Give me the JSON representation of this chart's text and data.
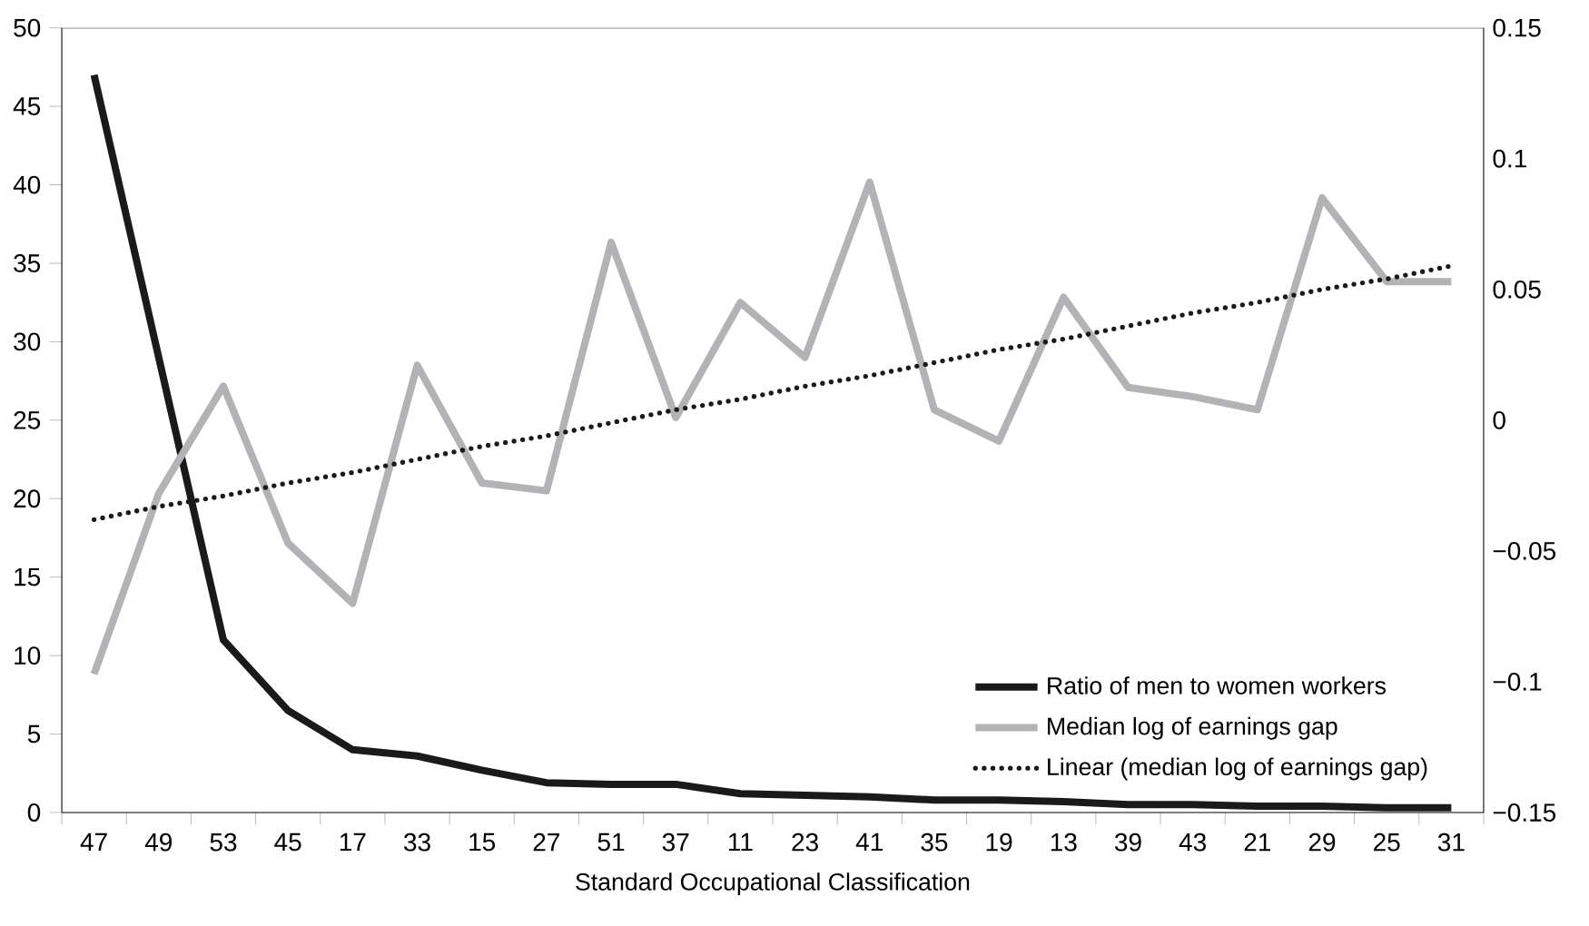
{
  "chart_data": {
    "type": "line",
    "xlabel": "Standard Occupational Classification",
    "categories": [
      "47",
      "49",
      "53",
      "45",
      "17",
      "33",
      "15",
      "27",
      "51",
      "37",
      "11",
      "23",
      "41",
      "35",
      "19",
      "13",
      "39",
      "43",
      "21",
      "29",
      "25",
      "31"
    ],
    "series": [
      {
        "name": "Ratio of men to women workers",
        "color": "#1a1a1a",
        "values": [
          47,
          29,
          11,
          6.5,
          4,
          3.6,
          2.7,
          1.9,
          1.8,
          1.8,
          1.2,
          1.1,
          1.0,
          0.8,
          0.8,
          0.7,
          0.5,
          0.5,
          0.4,
          0.4,
          0.3,
          0.3
        ]
      },
      {
        "name": "Median log of earnings gap",
        "color": "#b3b3b5",
        "axis": "y2",
        "values": [
          -0.097,
          -0.028,
          0.013,
          -0.047,
          -0.07,
          0.021,
          -0.024,
          -0.027,
          0.068,
          0.001,
          0.045,
          0.024,
          0.091,
          0.004,
          -0.008,
          0.047,
          0.0125,
          0.009,
          0.004,
          0.085,
          0.053,
          0.053
        ]
      },
      {
        "name": "Linear (median log of earnings gap)",
        "color": "#1a1a1a",
        "axis": "y2",
        "line_style": "dotted",
        "values": [
          -0.038,
          -0.033,
          -0.029,
          -0.024,
          -0.02,
          -0.015,
          -0.01,
          -0.006,
          -0.001,
          0.004,
          0.008,
          0.013,
          0.017,
          0.022,
          0.027,
          0.031,
          0.036,
          0.041,
          0.045,
          0.05,
          0.054,
          0.059
        ]
      }
    ],
    "ylim": [
      0,
      50
    ],
    "yticks": [
      0,
      5,
      10,
      15,
      20,
      25,
      30,
      35,
      40,
      45,
      50
    ],
    "y2lim": [
      -0.15,
      0.15
    ],
    "y2ticks": [
      {
        "value": -0.15,
        "label": "−0.15"
      },
      {
        "value": -0.1,
        "label": "−0.1"
      },
      {
        "value": -0.05,
        "label": "−0.05"
      },
      0,
      0.05,
      0.1,
      0.15
    ],
    "legend": "bottom right",
    "grid": false
  }
}
